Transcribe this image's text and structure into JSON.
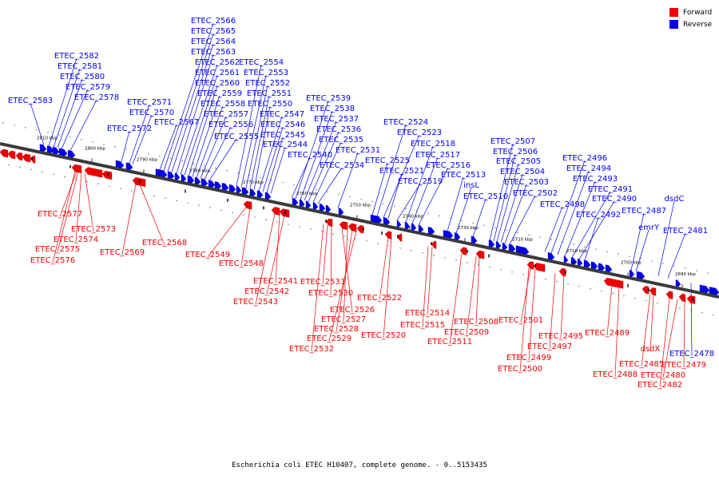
{
  "caption": "Escherichia coli ETEC H10407, complete genome. - 0..5153435",
  "legend": [
    {
      "label": "Forward",
      "color": "#ee0000"
    },
    {
      "label": "Reverse",
      "color": "#0000ee"
    }
  ],
  "ticks": [
    "2810 kbp",
    "2800 kbp",
    "2790 kbp",
    "2780 kbp",
    "2770 kbp",
    "2760 kbp",
    "2750 kbp",
    "2740 kbp",
    "2730 kbp",
    "2720 kbp",
    "2710 kbp",
    "2700 kbp",
    "2690 kbp"
  ],
  "reverse_genes": [
    "ETEC_2583",
    "ETEC_2582",
    "ETEC_2581",
    "ETEC_2580",
    "ETEC_2579",
    "ETEC_2578",
    "ETEC_2572",
    "ETEC_2571",
    "ETEC_2570",
    "ETEC_2567",
    "ETEC_2566",
    "ETEC_2565",
    "ETEC_2564",
    "ETEC_2563",
    "ETEC_2562",
    "ETEC_2561",
    "ETEC_2560",
    "ETEC_2559",
    "ETEC_2558",
    "ETEC_2557",
    "ETEC_2556",
    "ETEC_2555",
    "ETEC_2554",
    "ETEC_2553",
    "ETEC_2552",
    "ETEC_2551",
    "ETEC_2550",
    "ETEC_2547",
    "ETEC_2546",
    "ETEC_2545",
    "ETEC_2544",
    "ETEC_2540",
    "ETEC_2539",
    "ETEC_2538",
    "ETEC_2537",
    "ETEC_2536",
    "ETEC_2535",
    "ETEC_2534",
    "ETEC_2531",
    "ETEC_2525",
    "ETEC_2524",
    "ETEC_2523",
    "ETEC_2521",
    "ETEC_2519",
    "ETEC_2518",
    "ETEC_2517",
    "ETEC_2516",
    "ETEC_2513",
    "insL",
    "ETEC_2510",
    "ETEC_2507",
    "ETEC_2506",
    "ETEC_2505",
    "ETEC_2504",
    "ETEC_2503",
    "ETEC_2502",
    "ETEC_2498",
    "ETEC_2496",
    "ETEC_2494",
    "ETEC_2493",
    "ETEC_2491",
    "ETEC_2490",
    "ETEC_2492",
    "ETEC_2487",
    "emrY",
    "dsdC",
    "ETEC_2481",
    "ETEC_2478"
  ],
  "forward_genes": [
    "ETEC_2577",
    "ETEC_2573",
    "ETEC_2574",
    "ETEC_2575",
    "ETEC_2576",
    "ETEC_2569",
    "ETEC_2568",
    "ETEC_2549",
    "ETEC_2548",
    "ETEC_2541",
    "ETEC_2542",
    "ETEC_2543",
    "ETEC_2533",
    "ETEC_2530",
    "ETEC_2526",
    "ETEC_2527",
    "ETEC_2528",
    "ETEC_2529",
    "ETEC_2532",
    "ETEC_2522",
    "ETEC_2520",
    "ETEC_2514",
    "ETEC_2515",
    "ETEC_2508",
    "ETEC_2509",
    "ETEC_2511",
    "ETEC_2501",
    "ETEC_2495",
    "ETEC_2497",
    "ETEC_2499",
    "ETEC_2500",
    "ETEC_2489",
    "ETEC_2488",
    "dsdX",
    "ETEC_2485",
    "ETEC_2479",
    "ETEC_2480",
    "ETEC_2482"
  ]
}
